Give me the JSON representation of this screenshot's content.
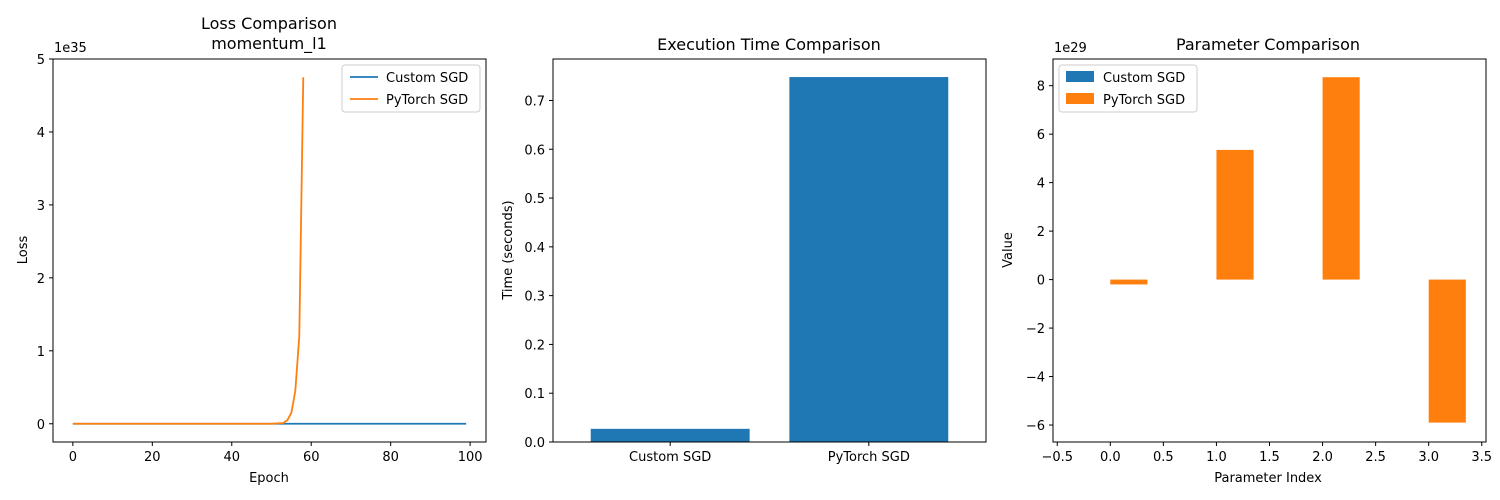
{
  "colors": {
    "custom": "#1f77b4",
    "pytorch": "#ff7f0e"
  },
  "chart_data": [
    {
      "type": "line",
      "title": "Loss Comparison",
      "subtitle": "momentum_l1",
      "xlabel": "Epoch",
      "ylabel": "Loss",
      "exponent_label": "1e35",
      "xlim": [
        -5,
        104
      ],
      "ylim": [
        -0.25,
        5
      ],
      "xticks": [
        0,
        20,
        40,
        60,
        80,
        100
      ],
      "yticks": [
        0,
        1,
        2,
        3,
        4,
        5
      ],
      "legend": "top-right",
      "series": [
        {
          "name": "Custom SGD",
          "color": "#1f77b4",
          "points": [
            [
              0,
              0
            ],
            [
              99,
              0
            ]
          ]
        },
        {
          "name": "PyTorch SGD",
          "color": "#ff7f0e",
          "points": [
            [
              0,
              0
            ],
            [
              50,
              0
            ],
            [
              53,
              0.01
            ],
            [
              54,
              0.05
            ],
            [
              55,
              0.15
            ],
            [
              56,
              0.45
            ],
            [
              57,
              1.2
            ],
            [
              58,
              4.75
            ]
          ]
        }
      ]
    },
    {
      "type": "bar",
      "title": "Execution Time Comparison",
      "xlabel": "",
      "ylabel": "Time (seconds)",
      "categories": [
        "Custom SGD",
        "PyTorch SGD"
      ],
      "values": [
        0.027,
        0.748
      ],
      "color": "#1f77b4",
      "ylim": [
        0,
        0.785
      ],
      "yticks": [
        0.0,
        0.1,
        0.2,
        0.3,
        0.4,
        0.5,
        0.6,
        0.7
      ]
    },
    {
      "type": "bar",
      "title": "Parameter Comparison",
      "xlabel": "Parameter Index",
      "ylabel": "Value",
      "exponent_label": "1e29",
      "xlim": [
        -0.54,
        3.54
      ],
      "ylim": [
        -6.7,
        9.1
      ],
      "xticks": [
        -0.5,
        0.0,
        0.5,
        1.0,
        1.5,
        2.0,
        2.5,
        3.0,
        3.5
      ],
      "yticks": [
        -6,
        -4,
        -2,
        0,
        2,
        4,
        6,
        8
      ],
      "bar_width": 0.35,
      "legend": "top-left",
      "series": [
        {
          "name": "Custom SGD",
          "color": "#1f77b4",
          "x": [
            -0.175,
            0.825,
            1.825,
            2.825
          ],
          "values": [
            0,
            0,
            0,
            0
          ]
        },
        {
          "name": "PyTorch SGD",
          "color": "#ff7f0e",
          "x": [
            0.175,
            1.175,
            2.175,
            3.175
          ],
          "values": [
            -0.2,
            5.35,
            8.35,
            -5.9
          ]
        }
      ]
    }
  ]
}
